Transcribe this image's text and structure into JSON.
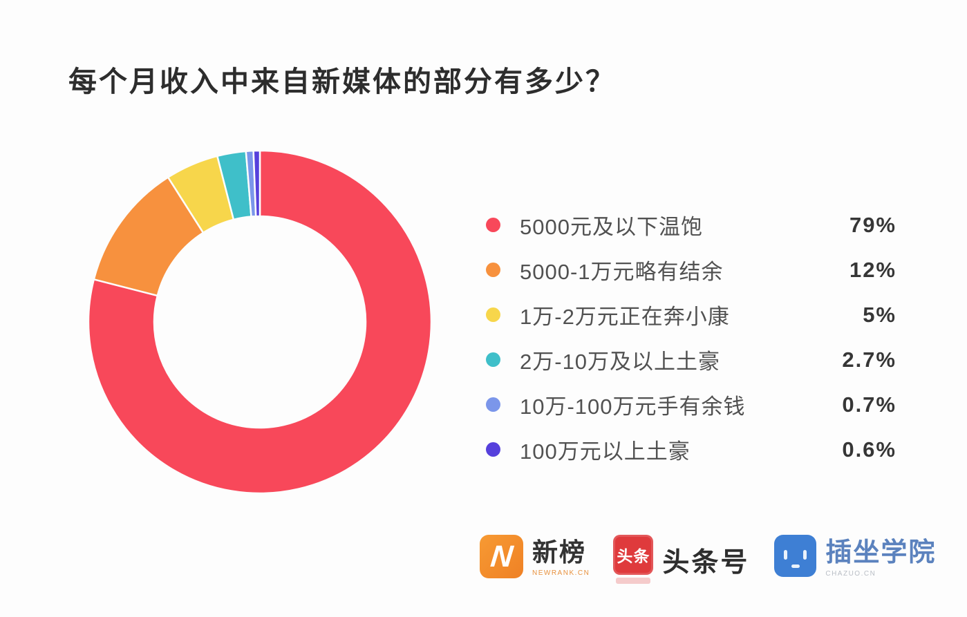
{
  "title": "每个月收入中来自新媒体的部分有多少？",
  "colors": {
    "background": "#FDFDFD",
    "title_text": "#2D2D2D",
    "legend_label_text": "#515151",
    "legend_value_text": "#363636"
  },
  "chart_data": {
    "type": "pie",
    "variant": "donut",
    "title": "每个月收入中来自新媒体的部分有多少？",
    "start_angle_deg": 0,
    "direction": "clockwise",
    "legend_position": "right",
    "series": [
      {
        "label": "5000元及以下温饱",
        "value": 79,
        "display": "79%",
        "color": "#F8485A"
      },
      {
        "label": "5000-1万元略有结余",
        "value": 12,
        "display": "12%",
        "color": "#F7913E"
      },
      {
        "label": "1万-2万元正在奔小康",
        "value": 5,
        "display": "5%",
        "color": "#F7D64B"
      },
      {
        "label": "2万-10万及以上土豪",
        "value": 2.7,
        "display": "2.7%",
        "color": "#3FBFC9"
      },
      {
        "label": "10万-100万元手有余钱",
        "value": 0.7,
        "display": "0.7%",
        "color": "#7B96EA"
      },
      {
        "label": "100万元以上土豪",
        "value": 0.6,
        "display": "0.6%",
        "color": "#5640DC"
      }
    ]
  },
  "footer": {
    "newrank": {
      "icon_letter": "N",
      "name": "新榜",
      "sub": "NEWRANK.CN",
      "brand_color": "#F28A2C"
    },
    "toutiao": {
      "icon_text": "头条",
      "name": "头条号",
      "brand_color": "#DF3A3C"
    },
    "chazuo": {
      "name": "插坐学院",
      "sub": "CHAZUO.CN",
      "brand_color": "#3E7FD4"
    }
  }
}
